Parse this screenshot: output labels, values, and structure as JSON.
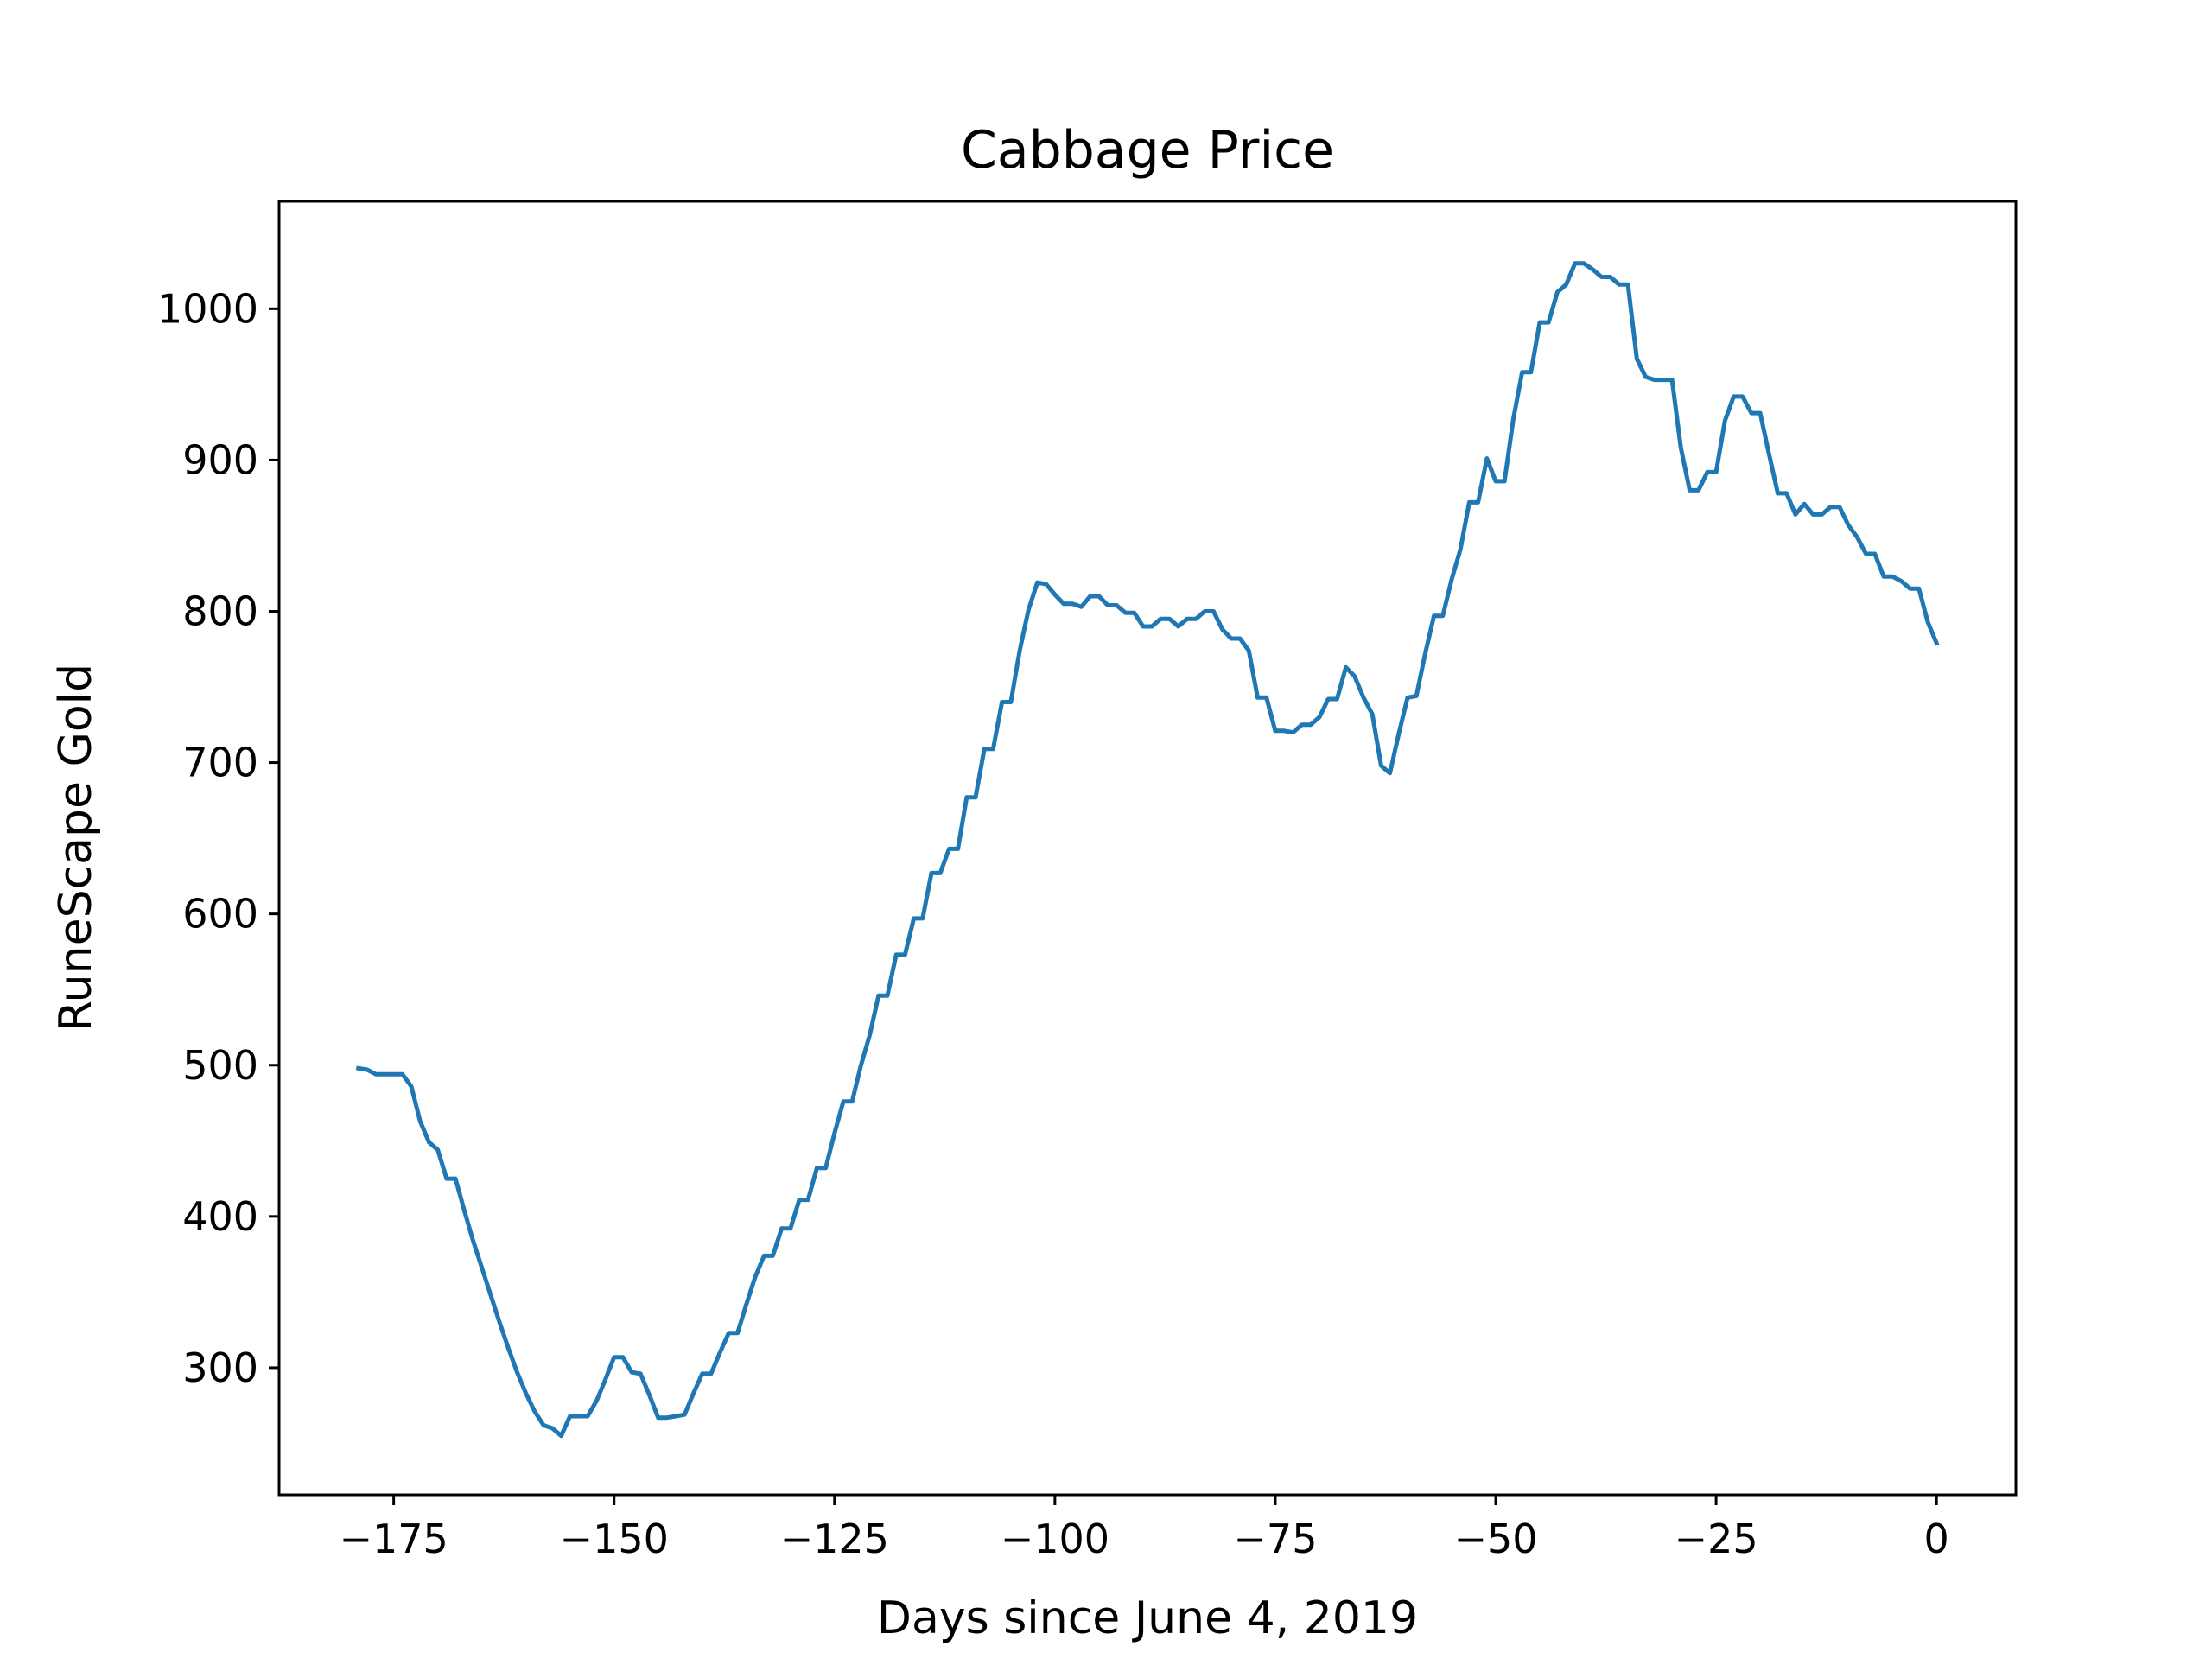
{
  "chart_data": {
    "type": "line",
    "title": "Cabbage Price",
    "xlabel": "Days since June 4, 2019",
    "ylabel": "RuneScape Gold",
    "xlim": [
      -188,
      9
    ],
    "ylim": [
      216,
      1071
    ],
    "xticks": [
      -175,
      -150,
      -125,
      -100,
      -75,
      -50,
      -25,
      0
    ],
    "xtick_labels": [
      "−175",
      "−150",
      "−125",
      "−100",
      "−75",
      "−50",
      "−25",
      "0"
    ],
    "yticks": [
      300,
      400,
      500,
      600,
      700,
      800,
      900,
      1000
    ],
    "ytick_labels": [
      "300",
      "400",
      "500",
      "600",
      "700",
      "800",
      "900",
      "1000"
    ],
    "grid": false,
    "line_color": "#1f77b4",
    "series": [
      {
        "x": [
          -179,
          -178,
          -177,
          -176,
          -175,
          -174,
          -173,
          -172,
          -171,
          -170,
          -169,
          -168,
          -167,
          -166,
          -165,
          -164,
          -163,
          -162,
          -161,
          -160,
          -159,
          -158,
          -157,
          -156,
          -155,
          -154,
          -153,
          -152,
          -151,
          -150,
          -149,
          -148,
          -147,
          -146,
          -145,
          -144,
          -143,
          -142,
          -141,
          -140,
          -139,
          -138,
          -137,
          -136,
          -135,
          -134,
          -133,
          -132,
          -131,
          -130,
          -129,
          -128,
          -127,
          -126,
          -125,
          -124,
          -123,
          -122,
          -121,
          -120,
          -119,
          -118,
          -117,
          -116,
          -115,
          -114,
          -113,
          -112,
          -111,
          -110,
          -109,
          -108,
          -107,
          -106,
          -105,
          -104,
          -103,
          -102,
          -101,
          -100,
          -99,
          -98,
          -97,
          -96,
          -95,
          -94,
          -93,
          -92,
          -91,
          -90,
          -89,
          -88,
          -87,
          -86,
          -85,
          -84,
          -83,
          -82,
          -81,
          -80,
          -79,
          -78,
          -77,
          -76,
          -75,
          -74,
          -73,
          -72,
          -71,
          -70,
          -69,
          -68,
          -67,
          -66,
          -65,
          -64,
          -63,
          -62,
          -61,
          -60,
          -59,
          -58,
          -57,
          -56,
          -55,
          -54,
          -53,
          -52,
          -51,
          -50,
          -49,
          -48,
          -47,
          -46,
          -45,
          -44,
          -43,
          -42,
          -41,
          -40,
          -39,
          -38,
          -37,
          -36,
          -35,
          -34,
          -33,
          -32,
          -31,
          -30,
          -29,
          -28,
          -27,
          -26,
          -25,
          -24,
          -23,
          -22,
          -21,
          -20,
          -19,
          -18,
          -17,
          -16,
          -15,
          -14,
          -13,
          -12,
          -11,
          -10,
          -9,
          -8,
          -7,
          -6,
          -5,
          -4,
          -3,
          -2,
          -1,
          0
        ],
        "y": [
          498,
          497,
          494,
          494,
          494,
          494,
          486,
          463,
          449,
          444,
          425,
          425,
          404,
          384,
          366,
          348,
          330,
          313,
          297,
          283,
          271,
          262,
          260,
          255,
          268,
          268,
          268,
          278,
          292,
          307,
          307,
          297,
          296,
          282,
          267,
          267,
          268,
          269,
          283,
          296,
          296,
          310,
          323,
          323,
          342,
          360,
          374,
          374,
          392,
          392,
          411,
          411,
          432,
          432,
          455,
          476,
          476,
          500,
          520,
          546,
          546,
          573,
          573,
          597,
          597,
          627,
          627,
          643,
          643,
          677,
          677,
          709,
          709,
          740,
          740,
          774,
          801,
          819,
          818,
          811,
          805,
          805,
          803,
          810,
          810,
          804,
          804,
          799,
          799,
          790,
          790,
          795,
          795,
          790,
          795,
          795,
          800,
          800,
          788,
          782,
          782,
          774,
          743,
          743,
          721,
          721,
          720,
          725,
          725,
          730,
          742,
          742,
          763,
          757,
          743,
          732,
          698,
          693,
          719,
          743,
          744,
          772,
          797,
          797,
          821,
          841,
          872,
          872,
          901,
          886,
          886,
          927,
          958,
          958,
          991,
          991,
          1011,
          1016,
          1030,
          1030,
          1026,
          1021,
          1021,
          1016,
          1016,
          967,
          955,
          953,
          953,
          953,
          908,
          880,
          880,
          892,
          892,
          926,
          942,
          942,
          931,
          931,
          904,
          878,
          878,
          864,
          871,
          864,
          864,
          869,
          869,
          857,
          849,
          838,
          838,
          823,
          823,
          820,
          815,
          815,
          793,
          779
        ]
      }
    ]
  }
}
